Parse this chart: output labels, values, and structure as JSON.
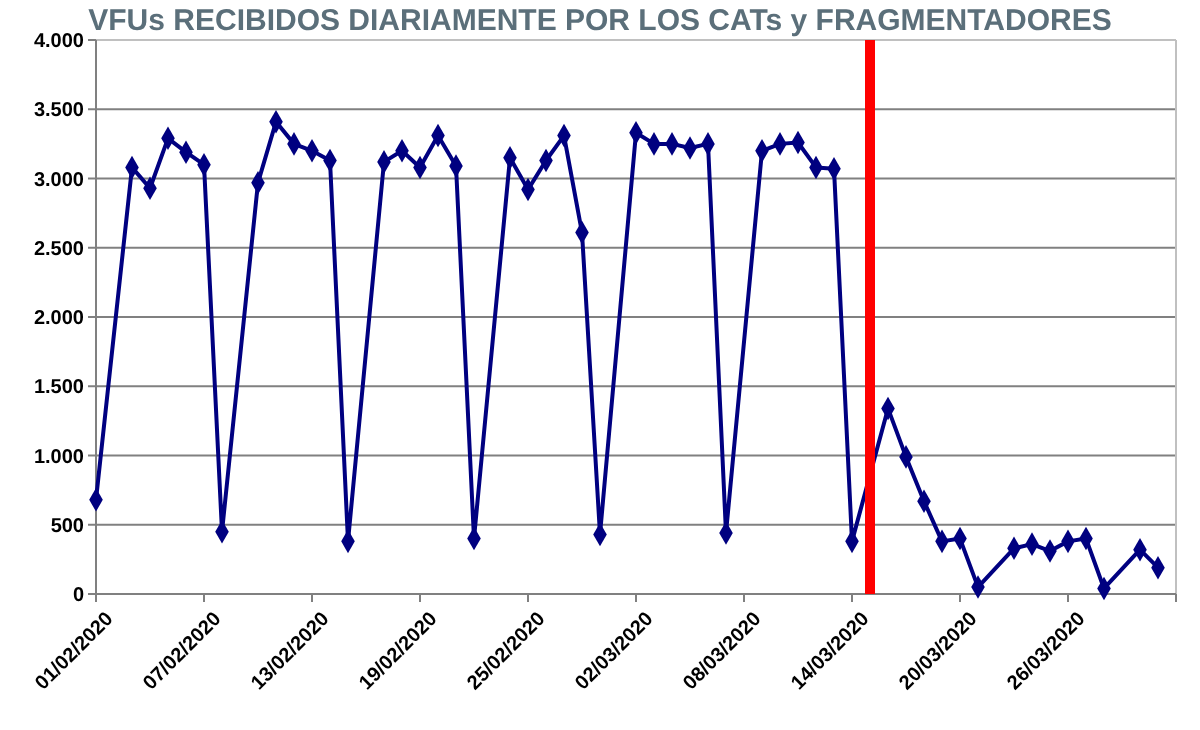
{
  "chart_data": {
    "type": "line",
    "title": "VFUs RECIBIDOS DIARIAMENTE POR LOS CATs y FRAGMENTADORES",
    "x": [
      "2020-02-01",
      "2020-02-03",
      "2020-02-04",
      "2020-02-05",
      "2020-02-06",
      "2020-02-07",
      "2020-02-08",
      "2020-02-10",
      "2020-02-11",
      "2020-02-12",
      "2020-02-13",
      "2020-02-14",
      "2020-02-15",
      "2020-02-17",
      "2020-02-18",
      "2020-02-19",
      "2020-02-20",
      "2020-02-21",
      "2020-02-22",
      "2020-02-24",
      "2020-02-25",
      "2020-02-26",
      "2020-02-27",
      "2020-02-28",
      "2020-02-29",
      "2020-03-02",
      "2020-03-03",
      "2020-03-04",
      "2020-03-05",
      "2020-03-06",
      "2020-03-07",
      "2020-03-09",
      "2020-03-10",
      "2020-03-11",
      "2020-03-12",
      "2020-03-13",
      "2020-03-14",
      "2020-03-16",
      "2020-03-17",
      "2020-03-18",
      "2020-03-19",
      "2020-03-20",
      "2020-03-21",
      "2020-03-23",
      "2020-03-24",
      "2020-03-25",
      "2020-03-26",
      "2020-03-27",
      "2020-03-28",
      "2020-03-30",
      "2020-03-31"
    ],
    "series": [
      {
        "color": "#000080",
        "values": [
          680,
          3080,
          2930,
          3290,
          3190,
          3100,
          450,
          2970,
          3410,
          3250,
          3200,
          3130,
          380,
          3120,
          3200,
          3080,
          3310,
          3090,
          400,
          3150,
          2920,
          3130,
          3310,
          2610,
          430,
          3330,
          3250,
          3250,
          3220,
          3250,
          440,
          3200,
          3250,
          3260,
          3080,
          3070,
          380,
          1340,
          990,
          670,
          380,
          400,
          50,
          330,
          360,
          310,
          380,
          400,
          40,
          320,
          190
        ]
      }
    ],
    "xlim": [
      "2020-02-01",
      "2020-04-01"
    ],
    "xticks": [
      {
        "value": "2020-02-01",
        "label": "01/02/2020"
      },
      {
        "value": "2020-02-07",
        "label": "07/02/2020"
      },
      {
        "value": "2020-02-13",
        "label": "13/02/2020"
      },
      {
        "value": "2020-02-19",
        "label": "19/02/2020"
      },
      {
        "value": "2020-02-25",
        "label": "25/02/2020"
      },
      {
        "value": "2020-03-02",
        "label": "02/03/2020"
      },
      {
        "value": "2020-03-08",
        "label": "08/03/2020"
      },
      {
        "value": "2020-03-14",
        "label": "14/03/2020"
      },
      {
        "value": "2020-03-20",
        "label": "20/03/2020"
      },
      {
        "value": "2020-03-26",
        "label": "26/03/2020"
      },
      {
        "value": "2020-04-01",
        "label": null
      }
    ],
    "ylim": [
      0,
      4000
    ],
    "yticks": [
      {
        "value": 0,
        "label": "0"
      },
      {
        "value": 500,
        "label": "500"
      },
      {
        "value": 1000,
        "label": "1.000"
      },
      {
        "value": 1500,
        "label": "1.500"
      },
      {
        "value": 2000,
        "label": "2.000"
      },
      {
        "value": 2500,
        "label": "2.500"
      },
      {
        "value": 3000,
        "label": "3.000"
      },
      {
        "value": 3500,
        "label": "3.500"
      },
      {
        "value": 4000,
        "label": "4.000"
      }
    ],
    "ref_lines": [
      {
        "axis": "x",
        "value": "2020-03-15",
        "color": "#ff0000"
      }
    ],
    "grid": "y",
    "marker": "diamond",
    "line_style": "solid"
  }
}
